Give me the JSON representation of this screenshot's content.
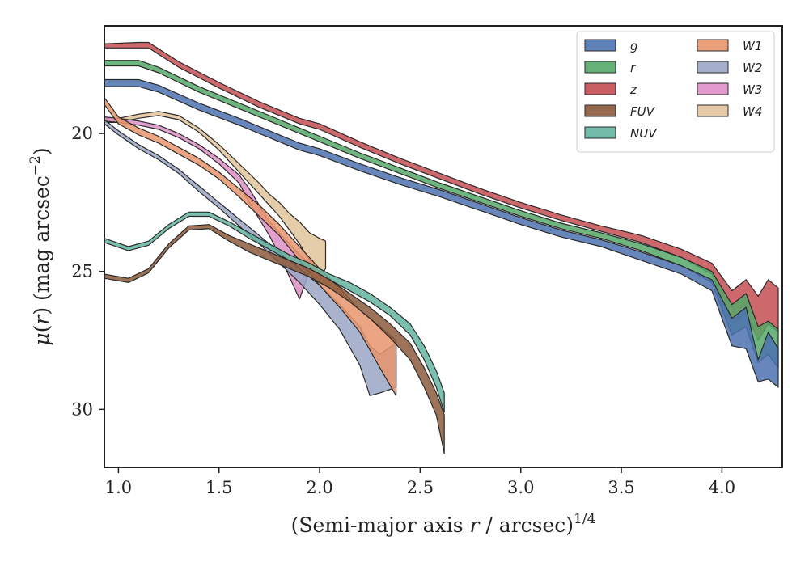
{
  "chart_data": {
    "type": "area",
    "xlabel": "(Semi-major axis r / arcsec)^1/4",
    "xlabel_parts": {
      "pre": "(Semi-major axis ",
      "var": "r",
      "mid": " / arcsec)",
      "sup": "1/4"
    },
    "ylabel": "μ(r) (mag arcsec^−2)",
    "ylabel_parts": {
      "mu": "μ",
      "open": "(",
      "var": "r",
      "close": ") (mag arcsec",
      "sup": "−2",
      "end": ")"
    },
    "xlim": [
      0.93,
      4.3
    ],
    "ylim": [
      32.1,
      16.1
    ],
    "y_inverted": true,
    "xticks": [
      1.0,
      1.5,
      2.0,
      2.5,
      3.0,
      3.5,
      4.0
    ],
    "xtick_labels": [
      "1.0",
      "1.5",
      "2.0",
      "2.5",
      "3.0",
      "3.5",
      "4.0"
    ],
    "yticks": [
      20,
      25,
      30
    ],
    "ytick_labels": [
      "20",
      "25",
      "30"
    ],
    "grid": false,
    "legend": {
      "position": "top-right",
      "columns": 2
    },
    "series": [
      {
        "name": "g",
        "color": "#4c72b0",
        "x": [
          0.93,
          1.1,
          1.2,
          1.4,
          1.6,
          1.8,
          1.9,
          2.0,
          2.2,
          2.4,
          2.6,
          2.8,
          3.0,
          3.2,
          3.4,
          3.6,
          3.8,
          3.95,
          4.05,
          4.12,
          4.18,
          4.23,
          4.28
        ],
        "lo": [
          18.05,
          18.05,
          18.25,
          18.9,
          19.45,
          20.05,
          20.35,
          20.55,
          21.1,
          21.6,
          22.05,
          22.55,
          23.05,
          23.5,
          23.85,
          24.3,
          24.8,
          25.3,
          26.7,
          26.3,
          28.2,
          27.2,
          27.8
        ],
        "hi": [
          18.3,
          18.3,
          18.5,
          19.15,
          19.7,
          20.3,
          20.6,
          20.8,
          21.35,
          21.85,
          22.3,
          22.8,
          23.3,
          23.75,
          24.1,
          24.6,
          25.1,
          25.7,
          27.7,
          27.8,
          29.0,
          28.9,
          29.2
        ]
      },
      {
        "name": "r",
        "color": "#55a868",
        "x": [
          0.93,
          1.1,
          1.2,
          1.4,
          1.6,
          1.8,
          1.9,
          2.0,
          2.2,
          2.4,
          2.6,
          2.8,
          3.0,
          3.2,
          3.4,
          3.6,
          3.8,
          3.95,
          4.05,
          4.12,
          4.18,
          4.23,
          4.28
        ],
        "lo": [
          17.35,
          17.35,
          17.6,
          18.3,
          18.9,
          19.5,
          19.8,
          20.1,
          20.7,
          21.25,
          21.8,
          22.3,
          22.8,
          23.25,
          23.6,
          24.0,
          24.5,
          25.0,
          26.2,
          25.8,
          27.0,
          26.8,
          27.1
        ],
        "hi": [
          17.55,
          17.55,
          17.8,
          18.5,
          19.1,
          19.7,
          20.0,
          20.3,
          20.9,
          21.45,
          22.0,
          22.5,
          23.0,
          23.45,
          23.8,
          24.25,
          24.8,
          25.4,
          27.3,
          27.0,
          28.3,
          28.0,
          28.5
        ]
      },
      {
        "name": "z",
        "color": "#c44e52",
        "x": [
          0.93,
          1.1,
          1.15,
          1.3,
          1.5,
          1.7,
          1.9,
          2.0,
          2.2,
          2.4,
          2.6,
          2.8,
          3.0,
          3.2,
          3.4,
          3.6,
          3.8,
          3.95,
          4.05,
          4.12,
          4.18,
          4.23,
          4.28
        ],
        "lo": [
          16.75,
          16.7,
          16.7,
          17.4,
          18.15,
          18.85,
          19.45,
          19.65,
          20.3,
          20.9,
          21.45,
          22.0,
          22.5,
          22.95,
          23.35,
          23.7,
          24.2,
          24.7,
          25.7,
          25.3,
          25.9,
          25.3,
          25.6
        ],
        "hi": [
          16.9,
          16.9,
          16.9,
          17.6,
          18.35,
          19.05,
          19.65,
          19.85,
          20.5,
          21.1,
          21.65,
          22.2,
          22.7,
          23.15,
          23.55,
          23.95,
          24.5,
          25.1,
          26.9,
          26.5,
          27.5,
          26.9,
          27.2
        ]
      },
      {
        "name": "FUV",
        "color": "#8c5a3c",
        "x": [
          0.93,
          1.05,
          1.15,
          1.25,
          1.35,
          1.45,
          1.55,
          1.65,
          1.75,
          1.85,
          1.95,
          2.05,
          2.15,
          2.25,
          2.35,
          2.45,
          2.52,
          2.58,
          2.62
        ],
        "lo": [
          25.1,
          25.25,
          24.9,
          24.0,
          23.35,
          23.3,
          23.7,
          24.0,
          24.3,
          24.6,
          24.9,
          25.3,
          25.8,
          26.3,
          26.9,
          27.6,
          28.5,
          29.4,
          30.2
        ],
        "hi": [
          25.25,
          25.4,
          25.05,
          24.15,
          23.5,
          23.45,
          23.9,
          24.3,
          24.6,
          24.9,
          25.2,
          25.6,
          26.1,
          26.7,
          27.4,
          28.2,
          29.2,
          30.2,
          31.6
        ]
      },
      {
        "name": "NUV",
        "color": "#64b5a0",
        "x": [
          0.93,
          1.05,
          1.15,
          1.25,
          1.35,
          1.45,
          1.55,
          1.65,
          1.75,
          1.85,
          1.95,
          2.05,
          2.15,
          2.25,
          2.35,
          2.45,
          2.52,
          2.58,
          2.62
        ],
        "lo": [
          23.8,
          24.1,
          23.9,
          23.3,
          22.85,
          22.85,
          23.2,
          23.6,
          24.0,
          24.4,
          24.7,
          25.1,
          25.4,
          25.8,
          26.3,
          26.9,
          27.7,
          28.6,
          29.4
        ],
        "hi": [
          23.95,
          24.25,
          24.05,
          23.45,
          23.0,
          23.0,
          23.35,
          23.8,
          24.2,
          24.6,
          24.9,
          25.3,
          25.7,
          26.1,
          26.6,
          27.3,
          28.2,
          29.2,
          30.1
        ]
      },
      {
        "name": "W1",
        "color": "#e8956c",
        "x": [
          0.93,
          1.0,
          1.1,
          1.2,
          1.3,
          1.4,
          1.5,
          1.6,
          1.7,
          1.8,
          1.9,
          2.0,
          2.1,
          2.2,
          2.3,
          2.38
        ],
        "lo": [
          18.7,
          19.4,
          19.8,
          20.1,
          20.5,
          20.9,
          21.4,
          22.0,
          22.6,
          23.3,
          24.1,
          24.9,
          25.6,
          26.4,
          27.0,
          27.5
        ],
        "hi": [
          18.95,
          19.65,
          20.05,
          20.35,
          20.75,
          21.15,
          21.65,
          22.3,
          23.0,
          23.7,
          24.6,
          25.5,
          26.3,
          27.2,
          28.5,
          29.5
        ]
      },
      {
        "name": "W2",
        "color": "#9aa6c6",
        "x": [
          0.93,
          1.0,
          1.1,
          1.2,
          1.3,
          1.4,
          1.5,
          1.6,
          1.7,
          1.8,
          1.9,
          2.0,
          2.1,
          2.2,
          2.25,
          2.3,
          2.38
        ],
        "lo": [
          19.5,
          19.9,
          20.4,
          20.8,
          21.3,
          21.9,
          22.5,
          23.1,
          23.7,
          24.3,
          24.9,
          25.5,
          26.2,
          27.0,
          27.7,
          28.0,
          27.6
        ],
        "hi": [
          19.65,
          20.05,
          20.55,
          20.95,
          21.45,
          22.1,
          22.7,
          23.35,
          24.0,
          24.7,
          25.4,
          26.2,
          27.1,
          28.4,
          29.5,
          29.4,
          29.2
        ]
      },
      {
        "name": "W3",
        "color": "#dd8fc5",
        "x": [
          0.93,
          1.0,
          1.1,
          1.2,
          1.3,
          1.4,
          1.5,
          1.6,
          1.65,
          1.7,
          1.75,
          1.8,
          1.85,
          1.9,
          1.95
        ],
        "lo": [
          19.4,
          19.45,
          19.55,
          19.7,
          20.0,
          20.4,
          20.9,
          21.5,
          22.0,
          22.6,
          23.2,
          23.6,
          24.0,
          24.4,
          24.7
        ],
        "hi": [
          19.55,
          19.6,
          19.7,
          19.85,
          20.15,
          20.55,
          21.1,
          21.8,
          22.5,
          23.1,
          23.7,
          24.4,
          25.2,
          26.0,
          25.0
        ]
      },
      {
        "name": "W4",
        "color": "#e2c49b",
        "x": [
          0.93,
          1.0,
          1.1,
          1.2,
          1.3,
          1.4,
          1.5,
          1.6,
          1.7,
          1.75,
          1.8,
          1.85,
          1.9,
          1.95,
          2.0,
          2.03
        ],
        "lo": [
          19.45,
          19.45,
          19.3,
          19.2,
          19.35,
          19.8,
          20.4,
          21.1,
          21.8,
          22.2,
          22.5,
          22.9,
          23.2,
          23.6,
          23.8,
          23.9
        ],
        "hi": [
          19.6,
          19.6,
          19.45,
          19.35,
          19.5,
          19.95,
          20.6,
          21.4,
          22.2,
          22.6,
          23.0,
          23.5,
          24.0,
          24.6,
          25.2,
          24.9
        ]
      }
    ]
  }
}
